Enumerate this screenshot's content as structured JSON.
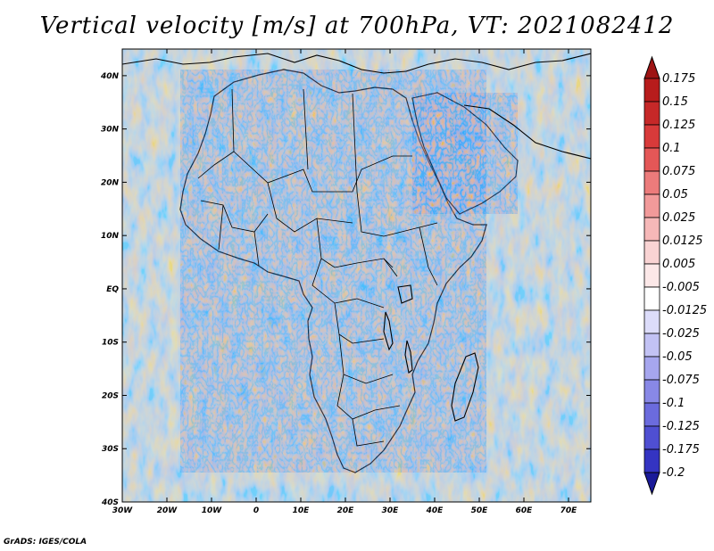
{
  "title": "Vertical velocity [m/s] at 700hPa, VT: 2021082412",
  "credit": "GrADS: IGES/COLA",
  "map": {
    "lon_range": [
      -30,
      75
    ],
    "lat_range": [
      -40,
      45
    ],
    "x_ticks": [
      {
        "lon": -30,
        "label": "30W"
      },
      {
        "lon": -20,
        "label": "20W"
      },
      {
        "lon": -10,
        "label": "10W"
      },
      {
        "lon": 0,
        "label": "0"
      },
      {
        "lon": 10,
        "label": "10E"
      },
      {
        "lon": 20,
        "label": "20E"
      },
      {
        "lon": 30,
        "label": "30E"
      },
      {
        "lon": 40,
        "label": "40E"
      },
      {
        "lon": 50,
        "label": "50E"
      },
      {
        "lon": 60,
        "label": "60E"
      },
      {
        "lon": 70,
        "label": "70E"
      }
    ],
    "y_ticks": [
      {
        "lat": 40,
        "label": "40N"
      },
      {
        "lat": 30,
        "label": "30N"
      },
      {
        "lat": 20,
        "label": "20N"
      },
      {
        "lat": 10,
        "label": "10N"
      },
      {
        "lat": 0,
        "label": "EQ"
      },
      {
        "lat": -10,
        "label": "10S"
      },
      {
        "lat": -20,
        "label": "20S"
      },
      {
        "lat": -30,
        "label": "30S"
      },
      {
        "lat": -40,
        "label": "40S"
      }
    ]
  },
  "colorbar": {
    "levels": [
      {
        "label": "0.175",
        "color": "#b71c1c"
      },
      {
        "label": "0.15",
        "color": "#c62828"
      },
      {
        "label": "0.125",
        "color": "#d83a3a"
      },
      {
        "label": "0.1",
        "color": "#e45757"
      },
      {
        "label": "0.075",
        "color": "#ec7b7b"
      },
      {
        "label": "0.05",
        "color": "#f29a9a"
      },
      {
        "label": "0.025",
        "color": "#f6b8b8"
      },
      {
        "label": "0.0125",
        "color": "#f9d3d3"
      },
      {
        "label": "0.005",
        "color": "#fce8e8"
      },
      {
        "label": "-0.005",
        "color": "#ffffff"
      },
      {
        "label": "-0.0125",
        "color": "#dcdcfa"
      },
      {
        "label": "-0.025",
        "color": "#c2c2f4"
      },
      {
        "label": "-0.05",
        "color": "#a6a6ee"
      },
      {
        "label": "-0.075",
        "color": "#8888e6"
      },
      {
        "label": "-0.1",
        "color": "#6b6bdd"
      },
      {
        "label": "-0.125",
        "color": "#4f4fd2"
      },
      {
        "label": "-0.175",
        "color": "#3434c2"
      },
      {
        "label": "-0.2",
        "color": "#2323aa"
      }
    ],
    "top_triangle_color": "#9e1414",
    "bottom_triangle_color": "#1a1a99"
  }
}
